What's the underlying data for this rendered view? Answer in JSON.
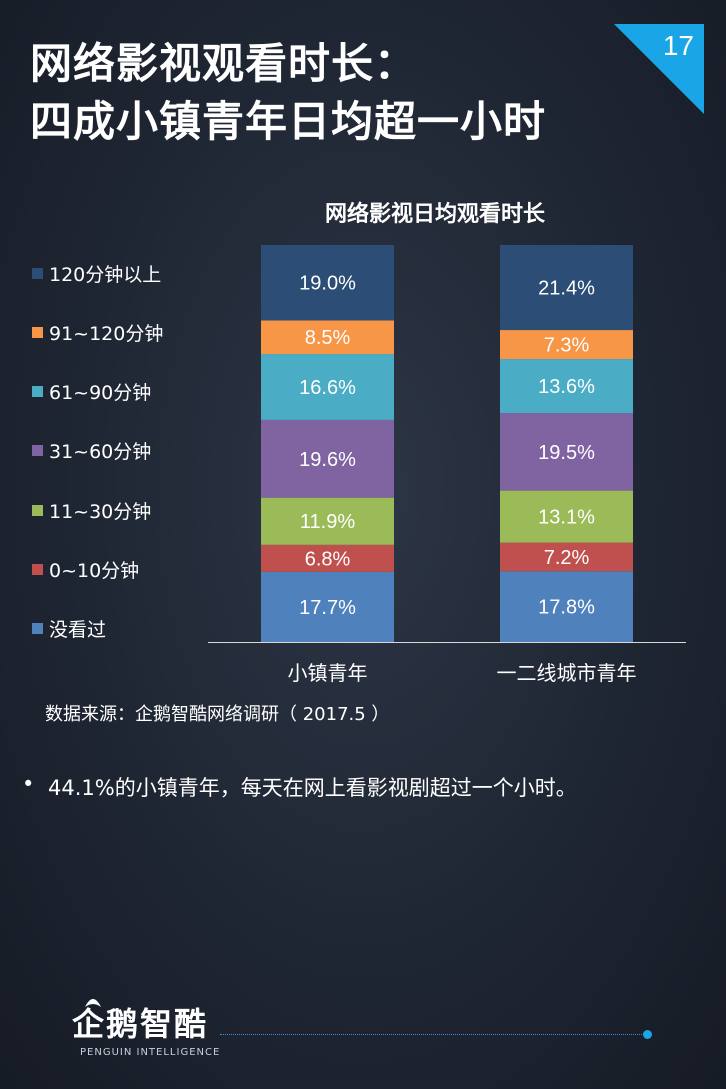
{
  "page": {
    "title_line1": "网络影视观看时长：",
    "title_line2": "四成小镇青年日均超一小时",
    "page_number": "17"
  },
  "chart_data": {
    "type": "bar",
    "stacked": true,
    "title": "网络影视日均观看时长",
    "categories": [
      "小镇青年",
      "一二线城市青年"
    ],
    "series": [
      {
        "name": "没看过",
        "values": [
          17.7,
          17.8
        ],
        "labels": [
          "17.7%",
          "17.8%"
        ],
        "color": "#4f81bd"
      },
      {
        "name": "0~10分钟",
        "values": [
          6.8,
          7.2
        ],
        "labels": [
          "6.8%",
          "7.2%"
        ],
        "color": "#c0504d"
      },
      {
        "name": "11~30分钟",
        "values": [
          11.9,
          13.1
        ],
        "labels": [
          "11.9%",
          "13.1%"
        ],
        "color": "#9bbb59"
      },
      {
        "name": "31~60分钟",
        "values": [
          19.6,
          19.5
        ],
        "labels": [
          "19.6%",
          "19.5%"
        ],
        "color": "#8064a2"
      },
      {
        "name": "61~90分钟",
        "values": [
          16.6,
          13.6
        ],
        "labels": [
          "16.6%",
          "13.6%"
        ],
        "color": "#4bacc6"
      },
      {
        "name": "91~120分钟",
        "values": [
          8.5,
          7.3
        ],
        "labels": [
          "8.5%",
          "7.3%"
        ],
        "color": "#f79646"
      },
      {
        "name": "120分钟以上",
        "values": [
          19.0,
          21.4
        ],
        "labels": [
          "19.0%",
          "21.4%"
        ],
        "color": "#2c4d75"
      }
    ],
    "ylim": [
      0,
      100
    ],
    "grid": false,
    "legend_position": "left"
  },
  "legend_order": [
    "120分钟以上",
    "91~120分钟",
    "61~90分钟",
    "31~60分钟",
    "11~30分钟",
    "0~10分钟",
    "没看过"
  ],
  "source": "数据来源：企鹅智酷网络调研（  2017.5 ）",
  "bullets": [
    {
      "marker": "•",
      "text": "44.1%的小镇青年，每天在网上看影视剧超过一个小时。"
    }
  ],
  "footer": {
    "logo_text": "企鹅智酷",
    "logo_subtext": "PENGUIN INTELLIGENCE",
    "penguin_icon": "penguin-icon"
  },
  "colors": {
    "accent": "#1aa6e6",
    "background": "#1f2633"
  }
}
